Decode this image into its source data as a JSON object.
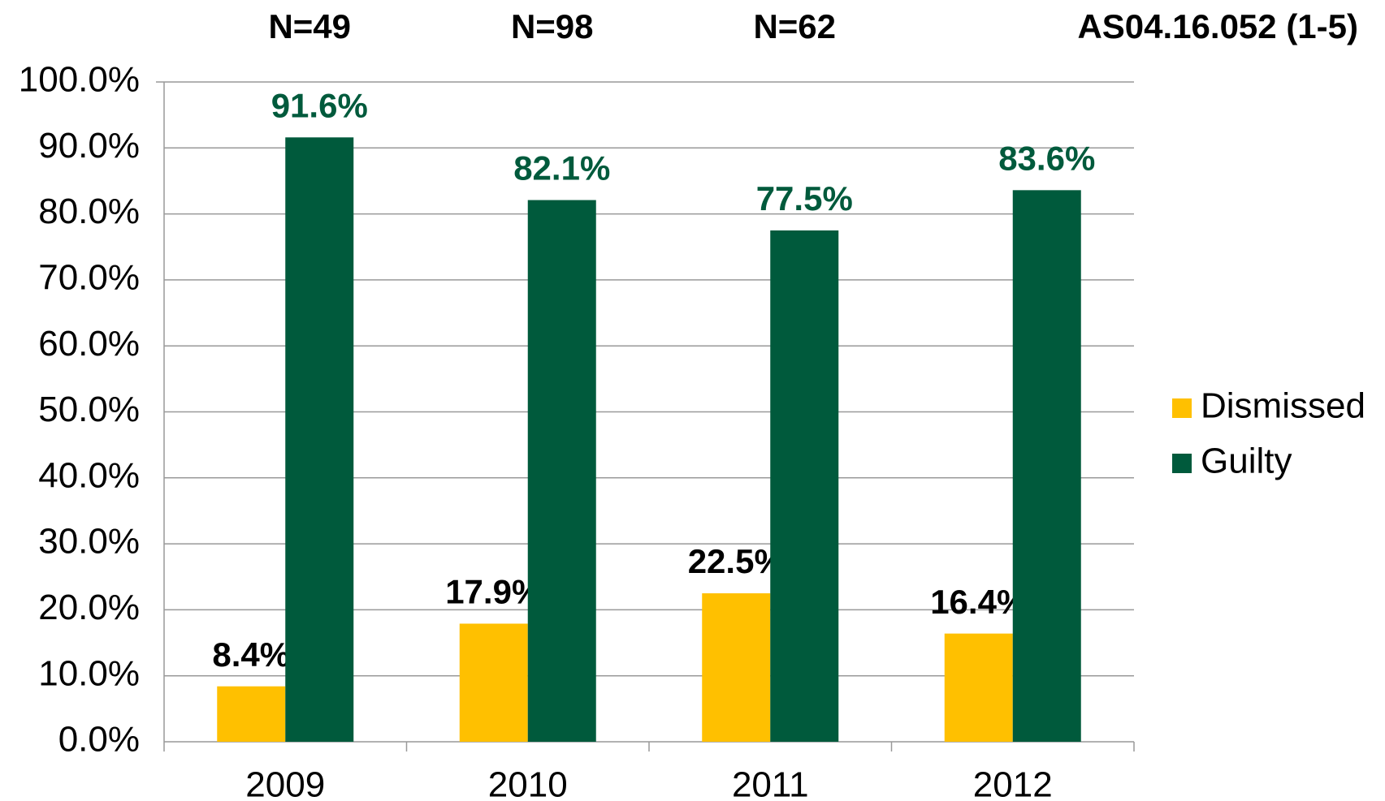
{
  "chart_data": {
    "type": "bar",
    "title": "AS04.16.052 (1-5)",
    "annotations": [
      "N=49",
      "N=98",
      "N=62"
    ],
    "categories": [
      "2009",
      "2010",
      "2011",
      "2012"
    ],
    "series": [
      {
        "name": "Dismissed",
        "color": "#FFC000",
        "label_color": "#000000",
        "values": [
          8.4,
          17.9,
          22.5,
          16.4
        ],
        "value_labels": [
          "8.4%",
          "17.9%",
          "22.5%",
          "16.4%"
        ]
      },
      {
        "name": "Guilty",
        "color": "#005A3C",
        "label_color": "#005A3C",
        "values": [
          91.6,
          82.1,
          77.5,
          83.6
        ],
        "value_labels": [
          "91.6%",
          "82.1%",
          "77.5%",
          "83.6%"
        ]
      }
    ],
    "ylim": [
      0,
      100
    ],
    "yticks": [
      {
        "value": 0,
        "label": "0.0%"
      },
      {
        "value": 10,
        "label": "10.0%"
      },
      {
        "value": 20,
        "label": "20.0%"
      },
      {
        "value": 30,
        "label": "30.0%"
      },
      {
        "value": 40,
        "label": "40.0%"
      },
      {
        "value": 50,
        "label": "50.0%"
      },
      {
        "value": 60,
        "label": "60.0%"
      },
      {
        "value": 70,
        "label": "70.0%"
      },
      {
        "value": 80,
        "label": "80.0%"
      },
      {
        "value": 90,
        "label": "90.0%"
      },
      {
        "value": 100,
        "label": "100.0%"
      }
    ],
    "grid": true,
    "legend": "right"
  }
}
